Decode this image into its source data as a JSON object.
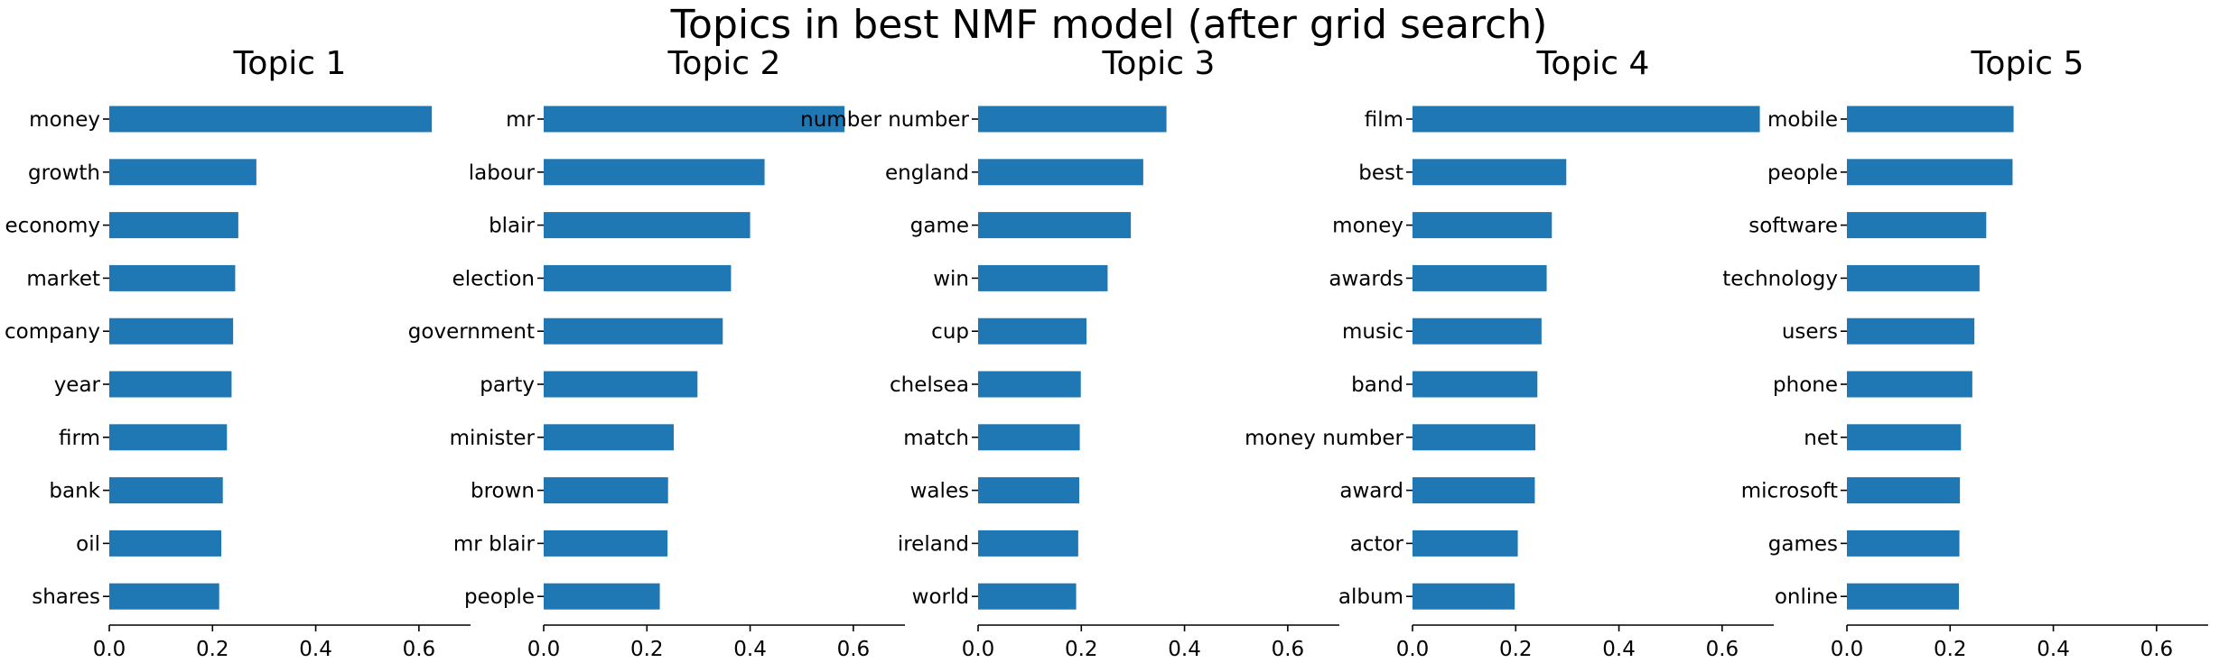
{
  "chart_data": {
    "type": "bar",
    "orientation": "horizontal",
    "title": "Topics in best NMF model (after grid search)",
    "bar_color": "#1f77b4",
    "xlim": [
      0,
      0.7
    ],
    "xticks": [
      0.0,
      0.2,
      0.4,
      0.6
    ],
    "xtick_labels": [
      "0.0",
      "0.2",
      "0.4",
      "0.6"
    ],
    "panels": [
      {
        "title": "Topic 1",
        "categories": [
          "money",
          "growth",
          "economy",
          "market",
          "company",
          "year",
          "firm",
          "bank",
          "oil",
          "shares"
        ],
        "values": [
          0.625,
          0.285,
          0.25,
          0.244,
          0.24,
          0.237,
          0.228,
          0.22,
          0.217,
          0.213
        ]
      },
      {
        "title": "Topic 2",
        "categories": [
          "mr",
          "labour",
          "blair",
          "election",
          "government",
          "party",
          "minister",
          "brown",
          "mr blair",
          "people"
        ],
        "values": [
          0.583,
          0.428,
          0.4,
          0.363,
          0.347,
          0.298,
          0.252,
          0.241,
          0.24,
          0.225
        ]
      },
      {
        "title": "Topic 3",
        "categories": [
          "number number",
          "england",
          "game",
          "win",
          "cup",
          "chelsea",
          "match",
          "wales",
          "ireland",
          "world"
        ],
        "values": [
          0.365,
          0.32,
          0.296,
          0.251,
          0.21,
          0.199,
          0.197,
          0.196,
          0.194,
          0.19
        ]
      },
      {
        "title": "Topic 4",
        "categories": [
          "film",
          "best",
          "money",
          "awards",
          "music",
          "band",
          "money number",
          "award",
          "actor",
          "album"
        ],
        "values": [
          0.673,
          0.298,
          0.27,
          0.26,
          0.25,
          0.242,
          0.238,
          0.237,
          0.204,
          0.198
        ]
      },
      {
        "title": "Topic 5",
        "categories": [
          "mobile",
          "people",
          "software",
          "technology",
          "users",
          "phone",
          "net",
          "microsoft",
          "games",
          "online"
        ],
        "values": [
          0.323,
          0.321,
          0.27,
          0.257,
          0.247,
          0.243,
          0.221,
          0.219,
          0.218,
          0.217
        ]
      }
    ]
  }
}
